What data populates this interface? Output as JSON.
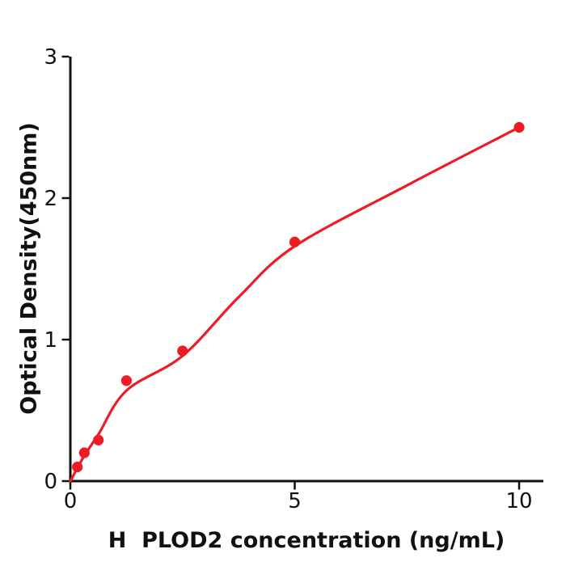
{
  "chart_data": {
    "type": "scatter",
    "title": "",
    "xlabel": "H  PLOD2 concentration (ng/mL)",
    "ylabel": "Optical Density(450nm)",
    "x_tick_labels": [
      "0",
      "5",
      "10"
    ],
    "x_tick_values": [
      0,
      5,
      10
    ],
    "y_tick_labels": [
      "0",
      "1",
      "2",
      "3"
    ],
    "y_tick_values": [
      0,
      1,
      2,
      3
    ],
    "xlim": [
      0,
      10.54
    ],
    "ylim": [
      0,
      3
    ],
    "grid": false,
    "legend_position": "none",
    "axis_color": "#111111",
    "text_color": "#111111",
    "series": [
      {
        "marker_color": "#ed1c24",
        "line_color": "#ed1c24",
        "points": [
          {
            "x": 0.156,
            "y": 0.1
          },
          {
            "x": 0.312,
            "y": 0.2
          },
          {
            "x": 0.625,
            "y": 0.29
          },
          {
            "x": 1.25,
            "y": 0.71
          },
          {
            "x": 2.5,
            "y": 0.92
          },
          {
            "x": 5,
            "y": 1.69
          },
          {
            "x": 10,
            "y": 2.5
          }
        ],
        "fit_curve": [
          [
            0,
            0
          ],
          [
            0.312,
            0.18
          ],
          [
            0.625,
            0.33
          ],
          [
            1.25,
            0.64
          ],
          [
            2.5,
            0.885
          ],
          [
            3.75,
            1.3
          ],
          [
            5,
            1.66
          ],
          [
            7.5,
            2.09
          ],
          [
            10,
            2.5
          ]
        ]
      }
    ]
  }
}
